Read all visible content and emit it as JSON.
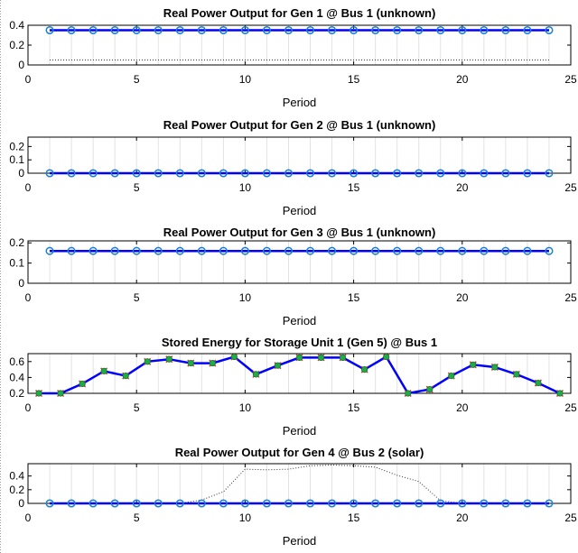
{
  "chart_data": [
    {
      "type": "line",
      "title": "Real Power Output for Gen 1 @ Bus 1 (unknown)",
      "xlabel": "Period",
      "ylabel": "",
      "xlim": [
        0,
        25
      ],
      "ylim": [
        0,
        0.4
      ],
      "xticks": [
        "0",
        "5",
        "10",
        "15",
        "20",
        "25"
      ],
      "yticks": [
        "0",
        "0.2",
        "0.4"
      ],
      "x": [
        1,
        2,
        3,
        4,
        5,
        6,
        7,
        8,
        9,
        10,
        11,
        12,
        13,
        14,
        15,
        16,
        17,
        18,
        19,
        20,
        21,
        22,
        23,
        24
      ],
      "series": [
        {
          "values": [
            0.35,
            0.35,
            0.35,
            0.35,
            0.35,
            0.35,
            0.35,
            0.35,
            0.35,
            0.35,
            0.35,
            0.35,
            0.35,
            0.35,
            0.35,
            0.35,
            0.35,
            0.35,
            0.35,
            0.35,
            0.35,
            0.35,
            0.35,
            0.35
          ]
        }
      ],
      "dotted": [
        0.05,
        0.05,
        0.05,
        0.05,
        0.05,
        0.05,
        0.05,
        0.05,
        0.05,
        0.05,
        0.05,
        0.05,
        0.05,
        0.05,
        0.05,
        0.05,
        0.05,
        0.05,
        0.05,
        0.05,
        0.05,
        0.05,
        0.05,
        0.05
      ],
      "half_markers": false
    },
    {
      "type": "line",
      "title": "Real Power Output for Gen 2 @ Bus 1 (unknown)",
      "xlabel": "Period",
      "ylabel": "",
      "xlim": [
        0,
        25
      ],
      "ylim": [
        0,
        0.27
      ],
      "xticks": [
        "0",
        "5",
        "10",
        "15",
        "20",
        "25"
      ],
      "yticks": [
        "0",
        "0.1",
        "0.2"
      ],
      "x": [
        1,
        2,
        3,
        4,
        5,
        6,
        7,
        8,
        9,
        10,
        11,
        12,
        13,
        14,
        15,
        16,
        17,
        18,
        19,
        20,
        21,
        22,
        23,
        24
      ],
      "series": [
        {
          "values": [
            0,
            0,
            0,
            0,
            0,
            0,
            0,
            0,
            0,
            0,
            0,
            0,
            0,
            0,
            0,
            0,
            0,
            0,
            0,
            0,
            0,
            0,
            0,
            0
          ]
        }
      ],
      "dotted": [],
      "half_markers": false
    },
    {
      "type": "line",
      "title": "Real Power Output for Gen 3 @ Bus 1 (unknown)",
      "xlabel": "Period",
      "ylabel": "",
      "xlim": [
        0,
        25
      ],
      "ylim": [
        0,
        0.21
      ],
      "xticks": [
        "0",
        "5",
        "10",
        "15",
        "20",
        "25"
      ],
      "yticks": [
        "0",
        "0.1",
        "0.2"
      ],
      "x": [
        1,
        2,
        3,
        4,
        5,
        6,
        7,
        8,
        9,
        10,
        11,
        12,
        13,
        14,
        15,
        16,
        17,
        18,
        19,
        20,
        21,
        22,
        23,
        24
      ],
      "series": [
        {
          "values": [
            0.16,
            0.16,
            0.16,
            0.16,
            0.16,
            0.16,
            0.16,
            0.16,
            0.16,
            0.16,
            0.16,
            0.16,
            0.16,
            0.16,
            0.16,
            0.16,
            0.16,
            0.16,
            0.16,
            0.16,
            0.16,
            0.16,
            0.16,
            0.16
          ]
        }
      ],
      "dotted": [],
      "half_markers": false
    },
    {
      "type": "line",
      "title": "Stored Energy for Storage Unit 1 (Gen 5) @ Bus 1",
      "xlabel": "Period",
      "ylabel": "",
      "xlim": [
        0,
        25
      ],
      "ylim": [
        0.2,
        0.7
      ],
      "xticks": [
        "0",
        "5",
        "10",
        "15",
        "20",
        "25"
      ],
      "yticks": [
        "0.2",
        "0.4",
        "0.6"
      ],
      "x": [
        0.5,
        1.5,
        2.5,
        3.5,
        4.5,
        5.5,
        6.5,
        7.5,
        8.5,
        9.5,
        10.5,
        11.5,
        12.5,
        13.5,
        14.5,
        15.5,
        16.5,
        17.5,
        18.5,
        19.5,
        20.5,
        21.5,
        22.5,
        23.5,
        24.5
      ],
      "series": [
        {
          "values": [
            0.2,
            0.2,
            0.32,
            0.48,
            0.42,
            0.6,
            0.63,
            0.58,
            0.58,
            0.66,
            0.44,
            0.55,
            0.65,
            0.65,
            0.65,
            0.5,
            0.66,
            0.2,
            0.25,
            0.42,
            0.56,
            0.53,
            0.44,
            0.33,
            0.2
          ]
        }
      ],
      "dotted": [],
      "half_markers": true
    },
    {
      "type": "line",
      "title": "Real Power Output for Gen 4 @ Bus 2 (solar)",
      "xlabel": "Period",
      "ylabel": "",
      "xlim": [
        0,
        25
      ],
      "ylim": [
        0,
        0.58
      ],
      "xticks": [
        "0",
        "5",
        "10",
        "15",
        "20",
        "25"
      ],
      "yticks": [
        "0",
        "0.2",
        "0.4"
      ],
      "x": [
        1,
        2,
        3,
        4,
        5,
        6,
        7,
        8,
        9,
        10,
        11,
        12,
        13,
        14,
        15,
        16,
        17,
        18,
        19,
        20,
        21,
        22,
        23,
        24
      ],
      "series": [
        {
          "values": [
            0,
            0,
            0,
            0,
            0,
            0,
            0,
            0,
            0,
            0,
            0,
            0,
            0,
            0,
            0,
            0,
            0,
            0,
            0,
            0,
            0,
            0,
            0,
            0
          ]
        }
      ],
      "dotted": [
        0,
        0,
        0,
        0,
        0,
        0,
        0,
        0.05,
        0.17,
        0.5,
        0.49,
        0.5,
        0.55,
        0.56,
        0.55,
        0.53,
        0.41,
        0.32,
        0.04,
        0,
        0,
        0,
        0,
        0
      ],
      "half_markers": false
    }
  ]
}
